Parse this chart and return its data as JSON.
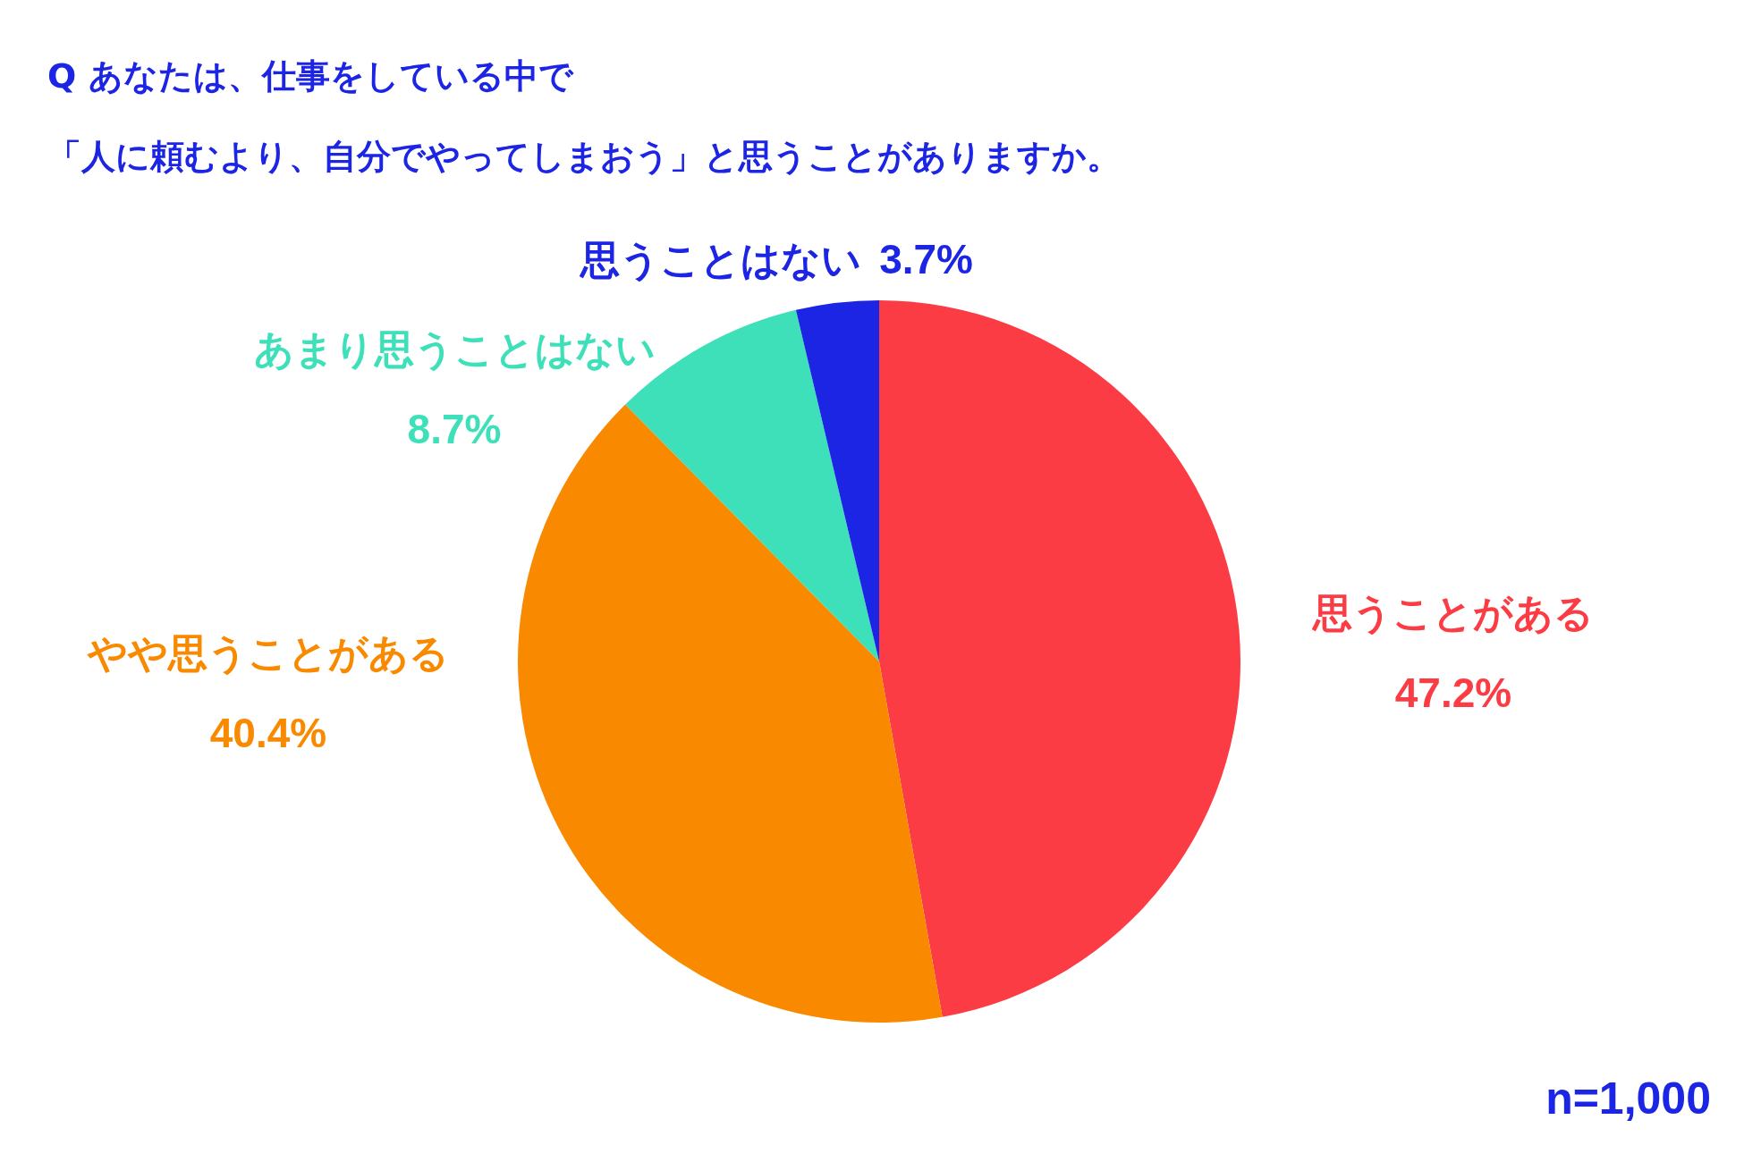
{
  "chart_data": {
    "type": "pie",
    "title": "Q あなたは、仕事をしている中で",
    "subtitle": "「人に頼むより、自分でやってしまおう」と思うことがありますか。",
    "categories": [
      "思うことがある",
      "やや思うことがある",
      "あまり思うことはない",
      "思うことはない"
    ],
    "values": [
      47.2,
      40.4,
      8.7,
      3.7
    ],
    "colors": [
      "#fc3c45",
      "#f98a00",
      "#3de0b8",
      "#1c25e4"
    ],
    "value_labels": [
      "47.2%",
      "40.4%",
      "8.7%",
      "3.7%"
    ],
    "annotations": [
      "n=1,000"
    ]
  }
}
